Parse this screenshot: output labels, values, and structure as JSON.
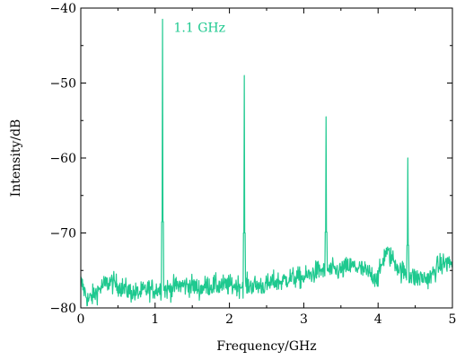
{
  "chart_data": {
    "type": "line",
    "title": "",
    "xlabel": "Frequency/GHz",
    "ylabel": "Intensity/dB",
    "xlim": [
      0,
      5
    ],
    "ylim": [
      -80,
      -40
    ],
    "xticks": [
      0,
      1,
      2,
      3,
      4,
      5
    ],
    "yticks": [
      -80,
      -70,
      -60,
      -50,
      -40
    ],
    "xtick_labels": [
      "0",
      "1",
      "2",
      "3",
      "4",
      "5"
    ],
    "ytick_labels": [
      "−80",
      "−70",
      "−60",
      "−50",
      "−40"
    ],
    "grid": false,
    "legend": "none",
    "series": [
      {
        "color": "#1ec98f",
        "noise_floor": [
          [
            0.0,
            -76.5
          ],
          [
            0.1,
            -79.0
          ],
          [
            0.2,
            -78.0
          ],
          [
            0.3,
            -77.0
          ],
          [
            0.4,
            -76.5
          ],
          [
            0.5,
            -77.0
          ],
          [
            0.6,
            -77.5
          ],
          [
            0.7,
            -78.0
          ],
          [
            0.8,
            -78.0
          ],
          [
            0.9,
            -77.5
          ],
          [
            1.0,
            -77.5
          ],
          [
            1.2,
            -77.5
          ],
          [
            1.3,
            -77.0
          ],
          [
            1.4,
            -77.0
          ],
          [
            1.5,
            -77.0
          ],
          [
            1.6,
            -77.5
          ],
          [
            1.7,
            -77.0
          ],
          [
            1.8,
            -77.0
          ],
          [
            1.9,
            -77.0
          ],
          [
            2.0,
            -77.0
          ],
          [
            2.1,
            -77.0
          ],
          [
            2.3,
            -77.0
          ],
          [
            2.4,
            -77.0
          ],
          [
            2.5,
            -77.0
          ],
          [
            2.6,
            -76.5
          ],
          [
            2.7,
            -76.5
          ],
          [
            2.8,
            -76.0
          ],
          [
            2.9,
            -76.0
          ],
          [
            3.0,
            -76.0
          ],
          [
            3.1,
            -75.5
          ],
          [
            3.2,
            -75.0
          ],
          [
            3.3,
            -75.0
          ],
          [
            3.4,
            -75.0
          ],
          [
            3.5,
            -75.0
          ],
          [
            3.6,
            -74.5
          ],
          [
            3.7,
            -74.5
          ],
          [
            3.8,
            -75.0
          ],
          [
            3.9,
            -75.5
          ],
          [
            4.0,
            -76.0
          ],
          [
            4.1,
            -72.5
          ],
          [
            4.2,
            -73.5
          ],
          [
            4.3,
            -75.0
          ],
          [
            4.5,
            -76.0
          ],
          [
            4.6,
            -76.0
          ],
          [
            4.7,
            -76.0
          ],
          [
            4.8,
            -74.5
          ],
          [
            4.9,
            -74.0
          ],
          [
            5.0,
            -74.0
          ]
        ],
        "peaks": [
          {
            "x": 1.1,
            "y": -41.5
          },
          {
            "x": 2.2,
            "y": -49.0
          },
          {
            "x": 3.3,
            "y": -54.5
          },
          {
            "x": 4.4,
            "y": -60.0
          }
        ]
      }
    ],
    "annotations": [
      {
        "text": "1.1 GHz",
        "x": 1.25,
        "y": -41.5,
        "color": "#1ec98f"
      }
    ]
  }
}
